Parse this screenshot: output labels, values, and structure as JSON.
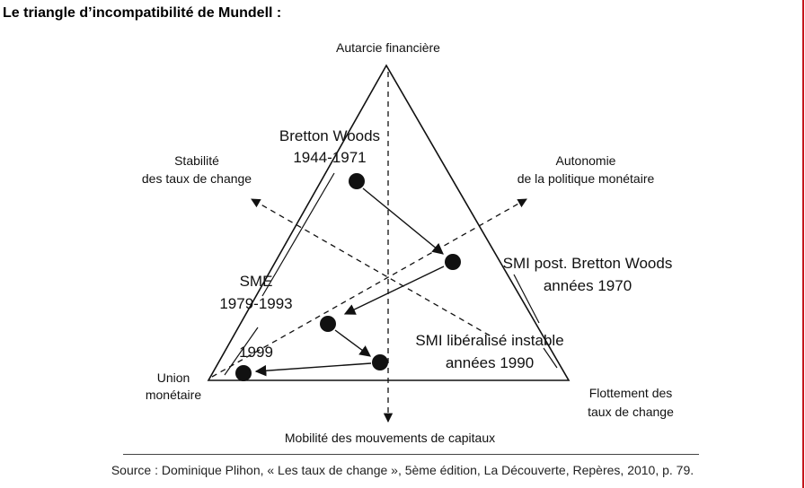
{
  "heading": "Le triangle d’incompatibilité de Mundell :",
  "vertices": {
    "top": "Autarcie financière",
    "left_line1": "Union",
    "left_line2": "monétaire",
    "right_line1": "Flottement des",
    "right_line2": "taux de change"
  },
  "axes": {
    "stability_line1": "Stabilité",
    "stability_line2": "des taux de change",
    "autonomy_line1": "Autonomie",
    "autonomy_line2": "de la politique monétaire",
    "mobility": "Mobilité des mouvements de capitaux"
  },
  "regimes": {
    "bretton_woods_line1": "Bretton Woods",
    "bretton_woods_line2": "1944-1971",
    "smi_post_line1": "SMI post. Bretton Woods",
    "smi_post_line2": "années 1970",
    "sme_line1": "SME",
    "sme_line2": "1979-1993",
    "smi_liberal_line1": "SMI libéralisé instable",
    "smi_liberal_line2": "années 1990",
    "year_1999": "1999"
  },
  "colors": {
    "frame": "#c4161c",
    "ink": "#111111"
  },
  "source": "Source : Dominique Plihon, « Les taux de change », 5ème édition, La Découverte, Repères, 2010, p. 79."
}
